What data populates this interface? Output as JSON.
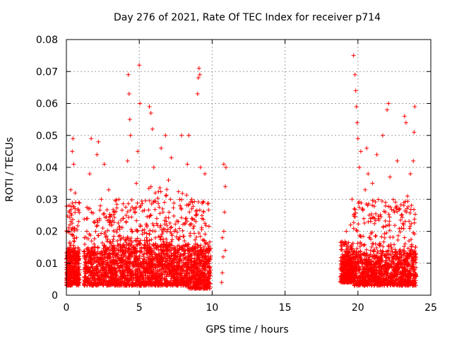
{
  "chart_data": {
    "type": "scatter",
    "title": "Day 276 of 2021, Rate Of TEC Index for receiver p714",
    "xlabel": "GPS time / hours",
    "ylabel": "ROTI / TECUs",
    "xlim": [
      0,
      25
    ],
    "ylim": [
      0,
      0.08
    ],
    "xticks": [
      0,
      5,
      10,
      15,
      20,
      25
    ],
    "xtick_labels": [
      "0",
      "5",
      "10",
      "15",
      "20",
      "25"
    ],
    "yticks": [
      0,
      0.01,
      0.02,
      0.03,
      0.04,
      0.05,
      0.06,
      0.07,
      0.08
    ],
    "ytick_labels": [
      "0",
      "0.01",
      "0.02",
      "0.03",
      "0.04",
      "0.05",
      "0.06",
      "0.07",
      "0.08"
    ],
    "grid": true,
    "marker": "+",
    "marker_color": "#ff0000",
    "series": [
      {
        "name": "ROTI",
        "points": [
          [
            0.05,
            0.008
          ],
          [
            0.1,
            0.012
          ],
          [
            0.15,
            0.02
          ],
          [
            0.2,
            0.026
          ],
          [
            0.25,
            0.015
          ],
          [
            0.3,
            0.033
          ],
          [
            0.35,
            0.01
          ],
          [
            0.4,
            0.021
          ],
          [
            0.45,
            0.006
          ],
          [
            0.5,
            0.041
          ],
          [
            0.4,
            0.045
          ],
          [
            0.45,
            0.049
          ],
          [
            0.6,
            0.032
          ],
          [
            0.7,
            0.018
          ],
          [
            0.8,
            0.013
          ],
          [
            0.2,
            0.004
          ],
          [
            0.6,
            0.005
          ],
          [
            1.3,
            0.012
          ],
          [
            1.4,
            0.02
          ],
          [
            1.5,
            0.027
          ],
          [
            1.6,
            0.038
          ],
          [
            1.7,
            0.049
          ],
          [
            1.8,
            0.009
          ],
          [
            1.9,
            0.016
          ],
          [
            2.1,
            0.044
          ],
          [
            2.2,
            0.048
          ],
          [
            2.3,
            0.013
          ],
          [
            2.4,
            0.03
          ],
          [
            2.5,
            0.021
          ],
          [
            2.6,
            0.041
          ],
          [
            2.7,
            0.006
          ],
          [
            2.9,
            0.033
          ],
          [
            3.0,
            0.012
          ],
          [
            3.1,
            0.022
          ],
          [
            3.3,
            0.008
          ],
          [
            3.5,
            0.017
          ],
          [
            3.6,
            0.03
          ],
          [
            3.8,
            0.004
          ],
          [
            4.0,
            0.015
          ],
          [
            4.1,
            0.025
          ],
          [
            4.2,
            0.042
          ],
          [
            4.25,
            0.069
          ],
          [
            4.3,
            0.063
          ],
          [
            4.35,
            0.055
          ],
          [
            4.4,
            0.05
          ],
          [
            4.5,
            0.02
          ],
          [
            4.7,
            0.012
          ],
          [
            4.8,
            0.035
          ],
          [
            4.9,
            0.045
          ],
          [
            5.0,
            0.072
          ],
          [
            5.05,
            0.06
          ],
          [
            5.1,
            0.028
          ],
          [
            5.3,
            0.01
          ],
          [
            5.5,
            0.018
          ],
          [
            5.7,
            0.059
          ],
          [
            5.8,
            0.057
          ],
          [
            5.9,
            0.052
          ],
          [
            6.0,
            0.04
          ],
          [
            6.1,
            0.032
          ],
          [
            6.2,
            0.024
          ],
          [
            6.3,
            0.015
          ],
          [
            6.4,
            0.008
          ],
          [
            6.5,
            0.046
          ],
          [
            6.6,
            0.027
          ],
          [
            6.8,
            0.05
          ],
          [
            7.0,
            0.036
          ],
          [
            7.1,
            0.012
          ],
          [
            7.2,
            0.043
          ],
          [
            7.4,
            0.02
          ],
          [
            7.6,
            0.009
          ],
          [
            7.8,
            0.028
          ],
          [
            7.9,
            0.05
          ],
          [
            8.1,
            0.017
          ],
          [
            8.3,
            0.041
          ],
          [
            8.4,
            0.05
          ],
          [
            8.6,
            0.03
          ],
          [
            8.8,
            0.013
          ],
          [
            9.0,
            0.063
          ],
          [
            9.05,
            0.068
          ],
          [
            9.1,
            0.071
          ],
          [
            9.15,
            0.069
          ],
          [
            9.2,
            0.04
          ],
          [
            9.3,
            0.024
          ],
          [
            9.4,
            0.01
          ],
          [
            9.5,
            0.038
          ],
          [
            9.6,
            0.005
          ],
          [
            9.7,
            0.016
          ],
          [
            9.8,
            0.007
          ],
          [
            10.65,
            0.004
          ],
          [
            10.7,
            0.007
          ],
          [
            10.75,
            0.012
          ],
          [
            10.8,
            0.02
          ],
          [
            10.85,
            0.026
          ],
          [
            10.9,
            0.034
          ],
          [
            10.95,
            0.04
          ],
          [
            10.8,
            0.041
          ],
          [
            10.9,
            0.014
          ],
          [
            10.7,
            0.018
          ],
          [
            18.9,
            0.008
          ],
          [
            19.0,
            0.012
          ],
          [
            19.1,
            0.016
          ],
          [
            19.2,
            0.02
          ],
          [
            19.3,
            0.007
          ],
          [
            19.4,
            0.01
          ],
          [
            19.5,
            0.022
          ],
          [
            19.6,
            0.03
          ],
          [
            19.7,
            0.075
          ],
          [
            19.8,
            0.069
          ],
          [
            19.85,
            0.064
          ],
          [
            19.9,
            0.059
          ],
          [
            19.95,
            0.054
          ],
          [
            20.0,
            0.049
          ],
          [
            20.1,
            0.04
          ],
          [
            20.2,
            0.045
          ],
          [
            20.3,
            0.027
          ],
          [
            20.4,
            0.011
          ],
          [
            20.5,
            0.033
          ],
          [
            20.6,
            0.046
          ],
          [
            20.7,
            0.038
          ],
          [
            20.8,
            0.018
          ],
          [
            21.0,
            0.035
          ],
          [
            21.1,
            0.007
          ],
          [
            21.3,
            0.044
          ],
          [
            21.4,
            0.024
          ],
          [
            21.6,
            0.013
          ],
          [
            21.7,
            0.05
          ],
          [
            21.9,
            0.029
          ],
          [
            22.0,
            0.058
          ],
          [
            22.1,
            0.06
          ],
          [
            22.2,
            0.037
          ],
          [
            22.3,
            0.015
          ],
          [
            22.5,
            0.026
          ],
          [
            22.7,
            0.042
          ],
          [
            22.8,
            0.01
          ],
          [
            23.0,
            0.021
          ],
          [
            23.2,
            0.056
          ],
          [
            23.3,
            0.054
          ],
          [
            23.4,
            0.031
          ],
          [
            23.5,
            0.017
          ],
          [
            23.6,
            0.038
          ],
          [
            23.8,
            0.042
          ],
          [
            23.85,
            0.051
          ],
          [
            23.9,
            0.059
          ],
          [
            23.95,
            0.012
          ],
          [
            23.9,
            0.004
          ],
          [
            23.0,
            0.006
          ],
          [
            22.0,
            0.003
          ]
        ],
        "dense_bands": [
          {
            "x_range": [
              0.0,
              0.9
            ],
            "y_range": [
              0.003,
              0.03
            ],
            "count": 420,
            "concentrate_below": 0.014
          },
          {
            "x_range": [
              1.2,
              3.2
            ],
            "y_range": [
              0.003,
              0.028
            ],
            "count": 520,
            "concentrate_below": 0.015
          },
          {
            "x_range": [
              3.2,
              5.6
            ],
            "y_range": [
              0.003,
              0.03
            ],
            "count": 650,
            "concentrate_below": 0.016
          },
          {
            "x_range": [
              5.6,
              8.4
            ],
            "y_range": [
              0.003,
              0.034
            ],
            "count": 820,
            "concentrate_below": 0.016
          },
          {
            "x_range": [
              8.4,
              9.9
            ],
            "y_range": [
              0.002,
              0.03
            ],
            "count": 460,
            "concentrate_below": 0.015
          },
          {
            "x_range": [
              18.8,
              19.7
            ],
            "y_range": [
              0.004,
              0.017
            ],
            "count": 380,
            "concentrate_below": 0.012
          },
          {
            "x_range": [
              19.7,
              24.0
            ],
            "y_range": [
              0.003,
              0.03
            ],
            "count": 1150,
            "concentrate_below": 0.014
          }
        ]
      }
    ]
  }
}
